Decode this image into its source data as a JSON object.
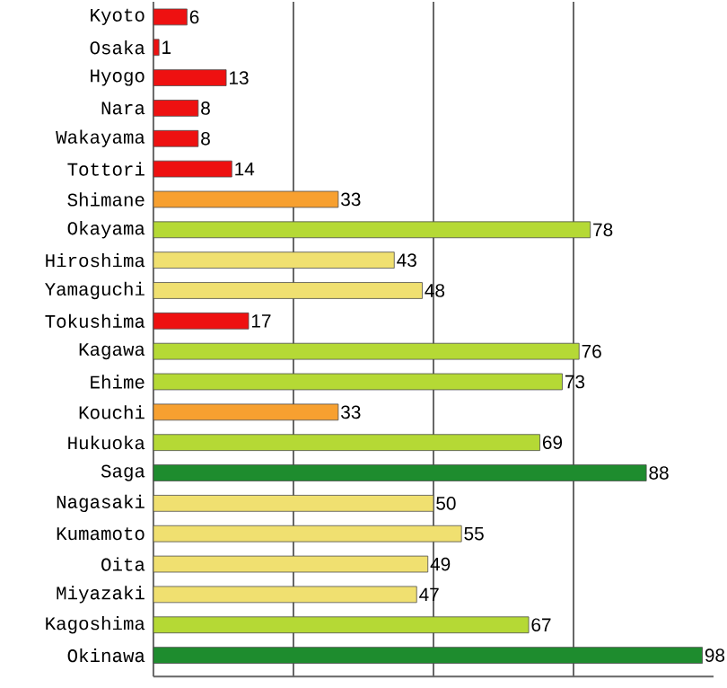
{
  "chart_data": {
    "type": "bar",
    "orientation": "horizontal",
    "categories": [
      "Kyoto",
      "Osaka",
      "Hyogo",
      "Nara",
      "Wakayama",
      "Tottori",
      "Shimane",
      "Okayama",
      "Hiroshima",
      "Yamaguchi",
      "Tokushima",
      "Kagawa",
      "Ehime",
      "Kouchi",
      "Hukuoka",
      "Saga",
      "Nagasaki",
      "Kumamoto",
      "Oita",
      "Miyazaki",
      "Kagoshima",
      "Okinawa"
    ],
    "values": [
      6,
      1,
      13,
      8,
      8,
      14,
      33,
      78,
      43,
      48,
      17,
      76,
      73,
      33,
      69,
      88,
      50,
      55,
      49,
      47,
      67,
      98
    ],
    "colors": [
      "#ee1111",
      "#ee1111",
      "#ee1111",
      "#ee1111",
      "#ee1111",
      "#ee1111",
      "#f7a030",
      "#b5d935",
      "#f0e070",
      "#f0e070",
      "#ee1111",
      "#b5d935",
      "#b5d935",
      "#f7a030",
      "#b5d935",
      "#1e8c2e",
      "#f0e070",
      "#f0e070",
      "#f0e070",
      "#f0e070",
      "#b5d935",
      "#1e8c2e"
    ],
    "xlim": [
      0,
      100
    ],
    "xticks": [
      {
        "value": 25,
        "label": null
      },
      {
        "value": 50,
        "label": null
      },
      {
        "value": 75,
        "label": null
      }
    ],
    "grid": "x",
    "tick_labels": "y",
    "data_labels": true
  }
}
